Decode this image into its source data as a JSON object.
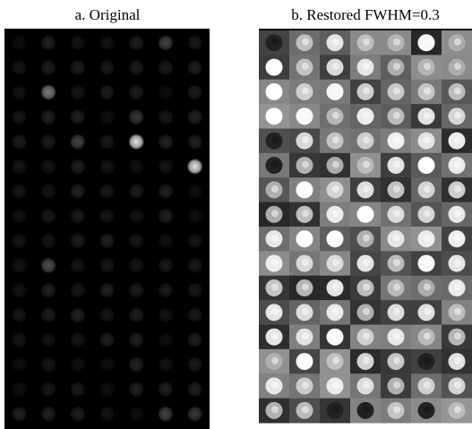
{
  "panels": [
    {
      "caption": "a. Original"
    },
    {
      "caption": "b. Restored FWHM=0.3"
    }
  ]
}
